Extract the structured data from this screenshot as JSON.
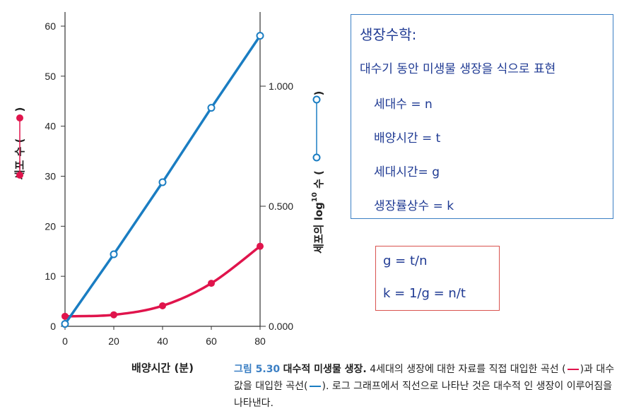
{
  "chart_data": {
    "type": "line",
    "xlabel": "배양시간 (분)",
    "x_ticks": [
      "0",
      "20",
      "40",
      "60",
      "80"
    ],
    "xlim": [
      0,
      80
    ],
    "ylabel_left": "세포 수 (",
    "ylabel_left_close": ")",
    "y_left_ticks": [
      "0",
      "10",
      "20",
      "30",
      "40",
      "50",
      "60"
    ],
    "ylim_left": [
      0,
      60
    ],
    "ylabel_right": "세포의 log",
    "ylabel_right_sup": "10",
    "ylabel_right_suffix": " 수 (",
    "ylabel_right_close": ")",
    "y_right_ticks": [
      "0.000",
      "0.500",
      "1.000"
    ],
    "ylim_right": [
      0,
      1.25
    ],
    "series": [
      {
        "axis": "left",
        "color": "#e0144c",
        "marker": "filled-circle",
        "x": [
          0,
          20,
          40,
          60,
          80
        ],
        "y": [
          2,
          2.3,
          4.1,
          8.6,
          16
        ]
      },
      {
        "axis": "right",
        "color": "#1a7dc2",
        "marker": "open-circle",
        "x": [
          0,
          20,
          40,
          60,
          80
        ],
        "y": [
          0.01,
          0.3,
          0.6,
          0.91,
          1.21
        ]
      }
    ]
  },
  "info_box": {
    "title": "생장수학:",
    "subtitle": "대수기 동안 미생물 생장을 식으로 표현",
    "lines": [
      "세대수 = n",
      "배양시간 = t",
      "세대시간= g",
      "생장률상수 = k"
    ]
  },
  "formula_box": {
    "lines": [
      "g = t/n",
      "k = 1/g = n/t"
    ]
  },
  "caption": {
    "figure_number": "그림 5.30",
    "figure_title": "대수적 미생물 생장.",
    "text_1": "4세대의 생장에 대한 자료를 직접 대입한 곡선 (",
    "text_2": ")과 대수 값을 대입한 곡선(",
    "text_3": "). 로그 그래프에서 직선으로 나타난 것은 대수적 인 생장이 이루어짐을 나타낸다."
  },
  "colors": {
    "red_series": "#e0144c",
    "blue_series": "#1a7dc2",
    "info_border": "#3b7fc4",
    "formula_border": "#d9534f",
    "text_blue": "#1f3a93"
  }
}
